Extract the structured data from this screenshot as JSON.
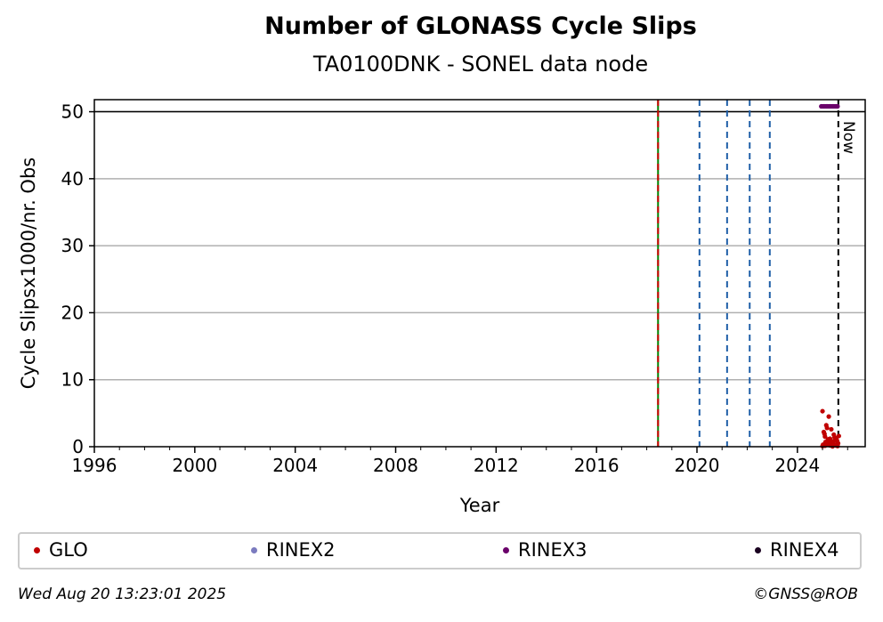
{
  "chart_data": {
    "type": "scatter",
    "title": "Number of GLONASS Cycle Slips",
    "subtitle": "TA0100DNK - SONEL data node",
    "xlabel": "Year",
    "ylabel": "Cycle Slipsx1000/nr. Obs",
    "xlim": [
      1996,
      2026.7
    ],
    "ylim": [
      0,
      51.8
    ],
    "xticks": [
      1996,
      2000,
      2004,
      2008,
      2012,
      2016,
      2020,
      2024
    ],
    "yticks": [
      0,
      10,
      20,
      30,
      40,
      50
    ],
    "grid": "horizontal",
    "hline": 50,
    "vlines": [
      {
        "x": 2018.45,
        "style": "solid",
        "color": "#008000"
      },
      {
        "x": 2018.45,
        "style": "dashed",
        "color": "#cc0000"
      },
      {
        "x": 2020.1,
        "style": "dashed",
        "color": "#1f5fa8"
      },
      {
        "x": 2021.2,
        "style": "dashed",
        "color": "#1f5fa8"
      },
      {
        "x": 2022.1,
        "style": "dashed",
        "color": "#1f5fa8"
      },
      {
        "x": 2022.9,
        "style": "dashed",
        "color": "#1f5fa8"
      },
      {
        "x": 2025.63,
        "style": "dashed",
        "color": "#000000",
        "label": "Now"
      }
    ],
    "series": [
      {
        "name": "GLO",
        "color": "#c00000",
        "x": [
          2025.0,
          2025.05,
          2025.1,
          2025.15,
          2025.2,
          2025.25,
          2025.3,
          2025.35,
          2025.4,
          2025.45,
          2025.5,
          2025.55,
          2025.6,
          2025.65,
          2025.02,
          2025.12,
          2025.22,
          2025.32,
          2025.42,
          2025.52,
          2025.62,
          2025.08,
          2025.18,
          2025.28,
          2025.38,
          2025.48,
          2025.58,
          2025.0,
          2025.3,
          2025.25,
          2025.1,
          2025.45,
          2025.6,
          2025.2,
          2025.4
        ],
        "y": [
          5.3,
          2.2,
          1.5,
          3.2,
          0.8,
          4.5,
          1.2,
          2.6,
          0.5,
          1.8,
          0.9,
          1.3,
          0.6,
          1.6,
          0.3,
          0.7,
          1.1,
          0.4,
          0.8,
          0.2,
          0.5,
          1.9,
          2.8,
          1.0,
          0.6,
          1.4,
          0.9,
          0.1,
          0.2,
          0.3,
          0.15,
          0.25,
          0.1,
          0.35,
          0.05
        ]
      },
      {
        "name": "RINEX2",
        "color": "#7b7bbf",
        "x": [],
        "y": []
      },
      {
        "name": "RINEX3",
        "color": "#6a006a",
        "x": [
          2024.95,
          2025.0,
          2025.05,
          2025.1,
          2025.15,
          2025.2,
          2025.25,
          2025.3,
          2025.35,
          2025.4,
          2025.45,
          2025.5,
          2025.55,
          2025.6
        ],
        "y": [
          50.8,
          50.8,
          50.8,
          50.8,
          50.8,
          50.8,
          50.8,
          50.8,
          50.8,
          50.8,
          50.8,
          50.8,
          50.8,
          50.8
        ]
      },
      {
        "name": "RINEX4",
        "color": "#1a0020",
        "x": [],
        "y": []
      }
    ]
  },
  "legend": [
    {
      "label": "GLO",
      "color": "#c00000"
    },
    {
      "label": "RINEX2",
      "color": "#7b7bbf"
    },
    {
      "label": "RINEX3",
      "color": "#6a006a"
    },
    {
      "label": "RINEX4",
      "color": "#1a0020"
    }
  ],
  "footer": {
    "timestamp": "Wed Aug 20 13:23:01 2025",
    "credit": "©GNSS@ROB"
  }
}
